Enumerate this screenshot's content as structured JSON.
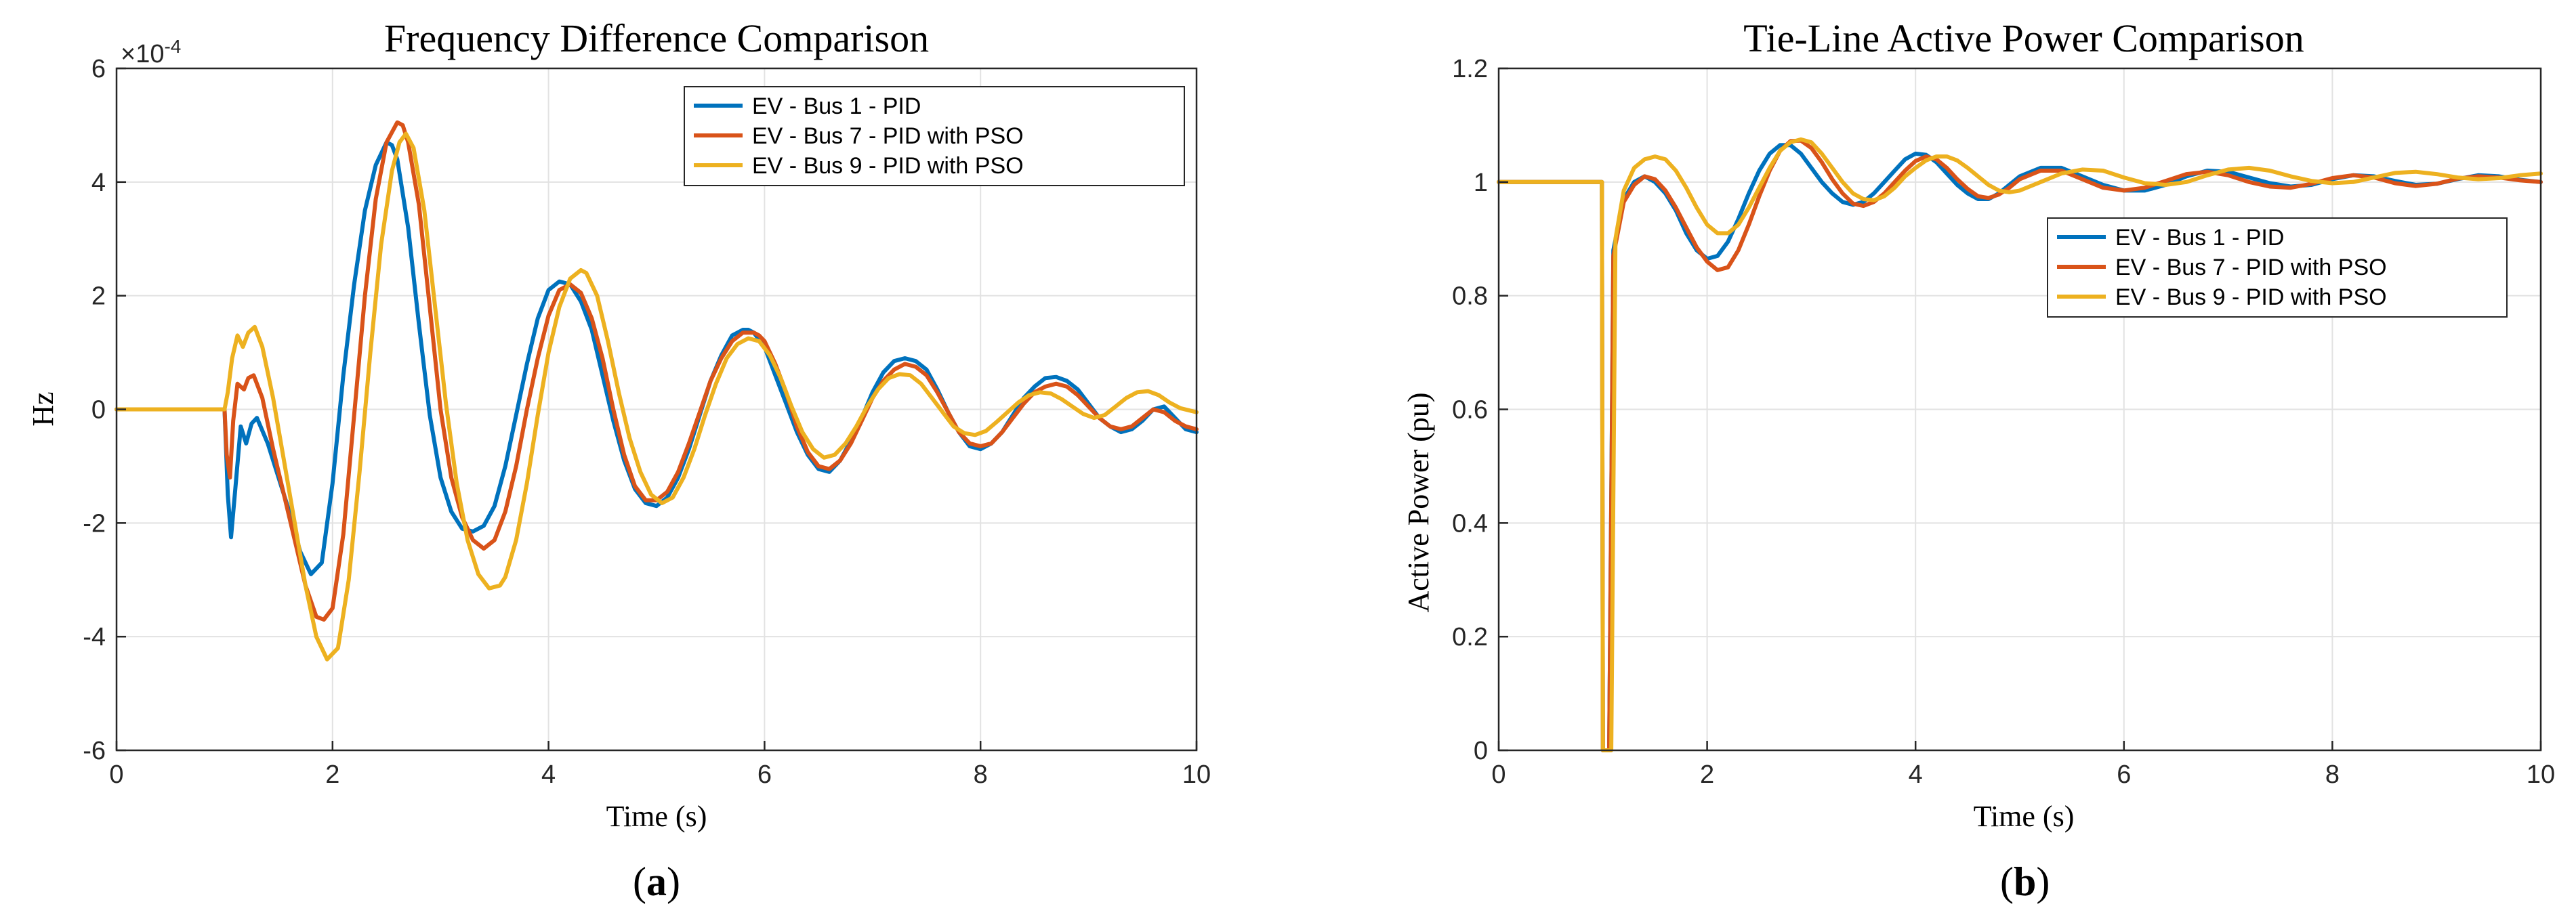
{
  "colors": {
    "series": [
      "#0072BD",
      "#D95319",
      "#EDB120"
    ],
    "grid": "#E2E2E2",
    "axis": "#262626",
    "background": "#FFFFFF"
  },
  "chart_data": [
    {
      "type": "line",
      "panel_label": "(a)",
      "title": "Frequency Difference Comparison",
      "xlabel": "Time (s)",
      "ylabel": "Hz",
      "y_multiplier": "×10",
      "y_exponent": "-4",
      "xlim": [
        0,
        10
      ],
      "ylim": [
        -6,
        6
      ],
      "xticks": [
        0,
        2,
        4,
        6,
        8,
        10
      ],
      "yticks": [
        -6,
        -4,
        -2,
        0,
        2,
        4,
        6
      ],
      "grid": true,
      "legend_position": "top-right",
      "series": [
        {
          "name": "EV - Bus 1 - PID",
          "x": [
            0,
            1.0,
            1.03,
            1.06,
            1.1,
            1.15,
            1.2,
            1.25,
            1.3,
            1.4,
            1.5,
            1.6,
            1.7,
            1.8,
            1.9,
            2.0,
            2.1,
            2.2,
            2.3,
            2.4,
            2.5,
            2.55,
            2.6,
            2.7,
            2.8,
            2.9,
            3.0,
            3.1,
            3.2,
            3.3,
            3.4,
            3.5,
            3.6,
            3.7,
            3.8,
            3.9,
            4.0,
            4.1,
            4.2,
            4.3,
            4.4,
            4.5,
            4.6,
            4.7,
            4.8,
            4.9,
            5.0,
            5.1,
            5.2,
            5.3,
            5.4,
            5.5,
            5.6,
            5.7,
            5.8,
            5.85,
            5.9,
            6.0,
            6.1,
            6.2,
            6.3,
            6.4,
            6.5,
            6.6,
            6.7,
            6.8,
            6.9,
            7.0,
            7.1,
            7.2,
            7.3,
            7.4,
            7.5,
            7.6,
            7.7,
            7.8,
            7.9,
            8.0,
            8.1,
            8.2,
            8.3,
            8.4,
            8.5,
            8.6,
            8.7,
            8.8,
            8.9,
            9.0,
            9.1,
            9.2,
            9.3,
            9.4,
            9.5,
            9.6,
            9.7,
            9.8,
            9.9,
            10.0
          ],
          "values": [
            0,
            0,
            -1.5,
            -2.25,
            -1.4,
            -0.3,
            -0.6,
            -0.25,
            -0.15,
            -0.6,
            -1.2,
            -1.8,
            -2.5,
            -2.9,
            -2.7,
            -1.3,
            0.6,
            2.2,
            3.5,
            4.3,
            4.7,
            4.65,
            4.4,
            3.2,
            1.5,
            -0.1,
            -1.2,
            -1.8,
            -2.1,
            -2.15,
            -2.05,
            -1.7,
            -1.0,
            -0.1,
            0.8,
            1.6,
            2.1,
            2.25,
            2.2,
            1.9,
            1.4,
            0.6,
            -0.2,
            -0.9,
            -1.4,
            -1.65,
            -1.7,
            -1.55,
            -1.2,
            -0.7,
            -0.1,
            0.5,
            0.95,
            1.3,
            1.4,
            1.4,
            1.35,
            1.1,
            0.6,
            0.1,
            -0.4,
            -0.8,
            -1.05,
            -1.1,
            -0.9,
            -0.55,
            -0.15,
            0.3,
            0.65,
            0.85,
            0.9,
            0.85,
            0.7,
            0.35,
            -0.05,
            -0.4,
            -0.65,
            -0.7,
            -0.6,
            -0.4,
            -0.1,
            0.2,
            0.4,
            0.55,
            0.57,
            0.5,
            0.35,
            0.1,
            -0.15,
            -0.3,
            -0.4,
            -0.35,
            -0.2,
            0.0,
            0.05,
            -0.15,
            -0.35,
            -0.4
          ]
        },
        {
          "name": "EV - Bus 7 - PID with PSO",
          "x": [
            0,
            1.0,
            1.02,
            1.05,
            1.08,
            1.12,
            1.18,
            1.22,
            1.27,
            1.35,
            1.45,
            1.55,
            1.65,
            1.75,
            1.85,
            1.92,
            2.0,
            2.1,
            2.2,
            2.3,
            2.4,
            2.5,
            2.6,
            2.65,
            2.7,
            2.8,
            2.9,
            3.0,
            3.1,
            3.2,
            3.3,
            3.4,
            3.5,
            3.6,
            3.7,
            3.8,
            3.9,
            4.0,
            4.1,
            4.2,
            4.3,
            4.4,
            4.5,
            4.6,
            4.7,
            4.8,
            4.9,
            5.0,
            5.1,
            5.2,
            5.3,
            5.4,
            5.5,
            5.6,
            5.7,
            5.8,
            5.9,
            5.95,
            6.0,
            6.1,
            6.2,
            6.3,
            6.4,
            6.5,
            6.6,
            6.7,
            6.8,
            6.9,
            7.0,
            7.1,
            7.2,
            7.3,
            7.4,
            7.5,
            7.6,
            7.7,
            7.8,
            7.9,
            8.0,
            8.1,
            8.2,
            8.3,
            8.4,
            8.5,
            8.6,
            8.7,
            8.8,
            8.9,
            9.0,
            9.1,
            9.2,
            9.3,
            9.4,
            9.5,
            9.6,
            9.7,
            9.8,
            9.9,
            10.0
          ],
          "values": [
            0,
            0,
            -0.8,
            -1.2,
            -0.2,
            0.45,
            0.35,
            0.55,
            0.6,
            0.2,
            -0.7,
            -1.5,
            -2.3,
            -3.1,
            -3.65,
            -3.7,
            -3.5,
            -2.2,
            -0.1,
            2.0,
            3.7,
            4.7,
            5.05,
            5.0,
            4.7,
            3.6,
            1.8,
            0.0,
            -1.2,
            -1.9,
            -2.3,
            -2.45,
            -2.3,
            -1.8,
            -1.0,
            0.0,
            0.9,
            1.65,
            2.1,
            2.2,
            2.05,
            1.6,
            0.9,
            0.0,
            -0.8,
            -1.35,
            -1.6,
            -1.6,
            -1.45,
            -1.1,
            -0.6,
            -0.05,
            0.5,
            0.9,
            1.2,
            1.35,
            1.35,
            1.3,
            1.2,
            0.8,
            0.3,
            -0.3,
            -0.75,
            -1.0,
            -1.05,
            -0.9,
            -0.6,
            -0.2,
            0.2,
            0.5,
            0.7,
            0.8,
            0.75,
            0.6,
            0.3,
            -0.05,
            -0.4,
            -0.6,
            -0.65,
            -0.6,
            -0.4,
            -0.15,
            0.1,
            0.3,
            0.4,
            0.45,
            0.4,
            0.25,
            0.05,
            -0.15,
            -0.3,
            -0.35,
            -0.3,
            -0.15,
            0.0,
            -0.05,
            -0.2,
            -0.3,
            -0.35
          ]
        },
        {
          "name": "EV - Bus 9 - PID with PSO",
          "x": [
            0,
            1.0,
            1.03,
            1.07,
            1.12,
            1.17,
            1.22,
            1.28,
            1.35,
            1.45,
            1.55,
            1.65,
            1.75,
            1.85,
            1.95,
            2.05,
            2.15,
            2.25,
            2.35,
            2.45,
            2.55,
            2.62,
            2.68,
            2.75,
            2.85,
            2.95,
            3.05,
            3.15,
            3.25,
            3.35,
            3.45,
            3.55,
            3.6,
            3.7,
            3.8,
            3.9,
            4.0,
            4.1,
            4.2,
            4.3,
            4.35,
            4.45,
            4.55,
            4.65,
            4.75,
            4.85,
            4.95,
            5.05,
            5.15,
            5.25,
            5.35,
            5.45,
            5.55,
            5.65,
            5.75,
            5.85,
            5.95,
            6.05,
            6.15,
            6.25,
            6.35,
            6.45,
            6.55,
            6.65,
            6.75,
            6.85,
            6.95,
            7.05,
            7.15,
            7.25,
            7.35,
            7.45,
            7.55,
            7.65,
            7.75,
            7.85,
            7.95,
            8.05,
            8.15,
            8.25,
            8.35,
            8.45,
            8.55,
            8.65,
            8.75,
            8.85,
            8.95,
            9.05,
            9.15,
            9.25,
            9.35,
            9.45,
            9.55,
            9.65,
            9.75,
            9.85,
            10.0
          ],
          "values": [
            0,
            0,
            0.3,
            0.9,
            1.3,
            1.1,
            1.35,
            1.45,
            1.1,
            0.2,
            -0.9,
            -2.0,
            -3.1,
            -4.0,
            -4.4,
            -4.2,
            -3.0,
            -1.1,
            1.0,
            2.9,
            4.2,
            4.7,
            4.85,
            4.6,
            3.5,
            1.8,
            0.1,
            -1.3,
            -2.3,
            -2.9,
            -3.15,
            -3.1,
            -2.95,
            -2.3,
            -1.3,
            -0.1,
            1.0,
            1.8,
            2.3,
            2.45,
            2.4,
            2.0,
            1.2,
            0.3,
            -0.5,
            -1.1,
            -1.5,
            -1.65,
            -1.55,
            -1.2,
            -0.7,
            -0.1,
            0.45,
            0.9,
            1.15,
            1.25,
            1.2,
            0.95,
            0.55,
            0.05,
            -0.4,
            -0.7,
            -0.85,
            -0.8,
            -0.6,
            -0.3,
            0.05,
            0.35,
            0.55,
            0.62,
            0.6,
            0.45,
            0.2,
            -0.05,
            -0.3,
            -0.42,
            -0.45,
            -0.38,
            -0.22,
            -0.05,
            0.12,
            0.25,
            0.3,
            0.28,
            0.18,
            0.05,
            -0.08,
            -0.15,
            -0.1,
            0.05,
            0.2,
            0.3,
            0.32,
            0.25,
            0.12,
            0.02,
            -0.05
          ]
        }
      ]
    },
    {
      "type": "line",
      "panel_label": "(b)",
      "title": "Tie-Line Active Power Comparison",
      "xlabel": "Time (s)",
      "ylabel": "Active Power (pu)",
      "xlim": [
        0,
        10
      ],
      "ylim": [
        0,
        1.2
      ],
      "xticks": [
        0,
        2,
        4,
        6,
        8,
        10
      ],
      "yticks": [
        0,
        0.2,
        0.4,
        0.6,
        0.8,
        1,
        1.2
      ],
      "grid": true,
      "legend_position": "center-right",
      "series": [
        {
          "name": "EV - Bus 1 - PID",
          "x": [
            0,
            0.99,
            1.0,
            1.03,
            1.06,
            1.1,
            1.2,
            1.3,
            1.4,
            1.5,
            1.6,
            1.7,
            1.8,
            1.9,
            2.0,
            2.1,
            2.2,
            2.3,
            2.4,
            2.5,
            2.6,
            2.7,
            2.8,
            2.9,
            3.0,
            3.1,
            3.2,
            3.3,
            3.4,
            3.5,
            3.6,
            3.7,
            3.8,
            3.9,
            4.0,
            4.1,
            4.2,
            4.3,
            4.4,
            4.5,
            4.6,
            4.7,
            4.8,
            4.9,
            5.0,
            5.2,
            5.4,
            5.6,
            5.8,
            6.0,
            6.2,
            6.4,
            6.6,
            6.8,
            7.0,
            7.2,
            7.4,
            7.6,
            7.8,
            8.0,
            8.2,
            8.4,
            8.6,
            8.8,
            9.0,
            9.2,
            9.4,
            9.6,
            9.8,
            10.0
          ],
          "values": [
            1,
            1,
            0.0,
            0.0,
            0.0,
            0.88,
            0.97,
            1.0,
            1.01,
            1.0,
            0.98,
            0.95,
            0.91,
            0.88,
            0.865,
            0.87,
            0.895,
            0.935,
            0.98,
            1.02,
            1.05,
            1.065,
            1.065,
            1.05,
            1.025,
            1.0,
            0.98,
            0.965,
            0.96,
            0.965,
            0.98,
            1.0,
            1.02,
            1.04,
            1.05,
            1.048,
            1.035,
            1.015,
            0.995,
            0.98,
            0.97,
            0.97,
            0.98,
            0.995,
            1.01,
            1.025,
            1.025,
            1.01,
            0.995,
            0.985,
            0.985,
            0.995,
            1.01,
            1.02,
            1.018,
            1.008,
            0.998,
            0.992,
            0.995,
            1.005,
            1.012,
            1.01,
            1.002,
            0.995,
            0.997,
            1.005,
            1.012,
            1.01,
            1.004,
            1.0
          ]
        },
        {
          "name": "EV - Bus 7 - PID with PSO",
          "x": [
            0,
            0.99,
            1.0,
            1.03,
            1.06,
            1.1,
            1.2,
            1.3,
            1.4,
            1.5,
            1.6,
            1.7,
            1.8,
            1.9,
            2.0,
            2.1,
            2.2,
            2.3,
            2.4,
            2.5,
            2.6,
            2.7,
            2.8,
            2.9,
            3.0,
            3.1,
            3.2,
            3.3,
            3.4,
            3.5,
            3.6,
            3.7,
            3.8,
            3.9,
            4.0,
            4.1,
            4.2,
            4.3,
            4.4,
            4.5,
            4.6,
            4.7,
            4.8,
            4.9,
            5.0,
            5.2,
            5.4,
            5.6,
            5.8,
            6.0,
            6.2,
            6.4,
            6.6,
            6.8,
            7.0,
            7.2,
            7.4,
            7.6,
            7.8,
            8.0,
            8.2,
            8.4,
            8.6,
            8.8,
            9.0,
            9.2,
            9.4,
            9.6,
            9.8,
            10.0
          ],
          "values": [
            1,
            1,
            0.0,
            0.0,
            0.0,
            0.87,
            0.965,
            0.995,
            1.01,
            1.005,
            0.985,
            0.955,
            0.92,
            0.885,
            0.86,
            0.845,
            0.85,
            0.88,
            0.925,
            0.975,
            1.02,
            1.055,
            1.072,
            1.073,
            1.06,
            1.035,
            1.005,
            0.98,
            0.962,
            0.958,
            0.965,
            0.98,
            1.0,
            1.02,
            1.037,
            1.045,
            1.04,
            1.025,
            1.005,
            0.988,
            0.975,
            0.972,
            0.978,
            0.99,
            1.005,
            1.02,
            1.02,
            1.005,
            0.99,
            0.985,
            0.99,
            1.002,
            1.014,
            1.018,
            1.012,
            1.0,
            0.992,
            0.99,
            0.997,
            1.007,
            1.012,
            1.008,
            0.998,
            0.993,
            0.997,
            1.006,
            1.01,
            1.008,
            1.003,
            1.0
          ]
        },
        {
          "name": "EV - Bus 9 - PID with PSO",
          "x": [
            0,
            0.99,
            1.0,
            1.04,
            1.08,
            1.12,
            1.2,
            1.3,
            1.4,
            1.5,
            1.6,
            1.7,
            1.8,
            1.9,
            2.0,
            2.1,
            2.2,
            2.3,
            2.4,
            2.5,
            2.6,
            2.7,
            2.8,
            2.9,
            3.0,
            3.1,
            3.2,
            3.3,
            3.4,
            3.5,
            3.6,
            3.7,
            3.8,
            3.9,
            4.0,
            4.1,
            4.2,
            4.3,
            4.4,
            4.5,
            4.6,
            4.7,
            4.8,
            4.9,
            5.0,
            5.2,
            5.4,
            5.6,
            5.8,
            6.0,
            6.2,
            6.4,
            6.6,
            6.8,
            7.0,
            7.2,
            7.4,
            7.6,
            7.8,
            8.0,
            8.2,
            8.4,
            8.6,
            8.8,
            9.0,
            9.2,
            9.4,
            9.6,
            9.8,
            10.0
          ],
          "values": [
            1,
            1,
            0.0,
            0.0,
            0.0,
            0.9,
            0.985,
            1.025,
            1.04,
            1.045,
            1.04,
            1.02,
            0.99,
            0.955,
            0.925,
            0.91,
            0.91,
            0.925,
            0.955,
            0.99,
            1.025,
            1.055,
            1.07,
            1.075,
            1.07,
            1.05,
            1.025,
            1.0,
            0.98,
            0.97,
            0.968,
            0.975,
            0.99,
            1.01,
            1.025,
            1.038,
            1.045,
            1.045,
            1.038,
            1.025,
            1.01,
            0.995,
            0.985,
            0.982,
            0.985,
            1.0,
            1.015,
            1.022,
            1.02,
            1.008,
            0.998,
            0.995,
            1.0,
            1.012,
            1.022,
            1.025,
            1.02,
            1.01,
            1.002,
            0.998,
            1.0,
            1.008,
            1.016,
            1.018,
            1.014,
            1.008,
            1.005,
            1.007,
            1.012,
            1.015
          ]
        }
      ]
    }
  ]
}
